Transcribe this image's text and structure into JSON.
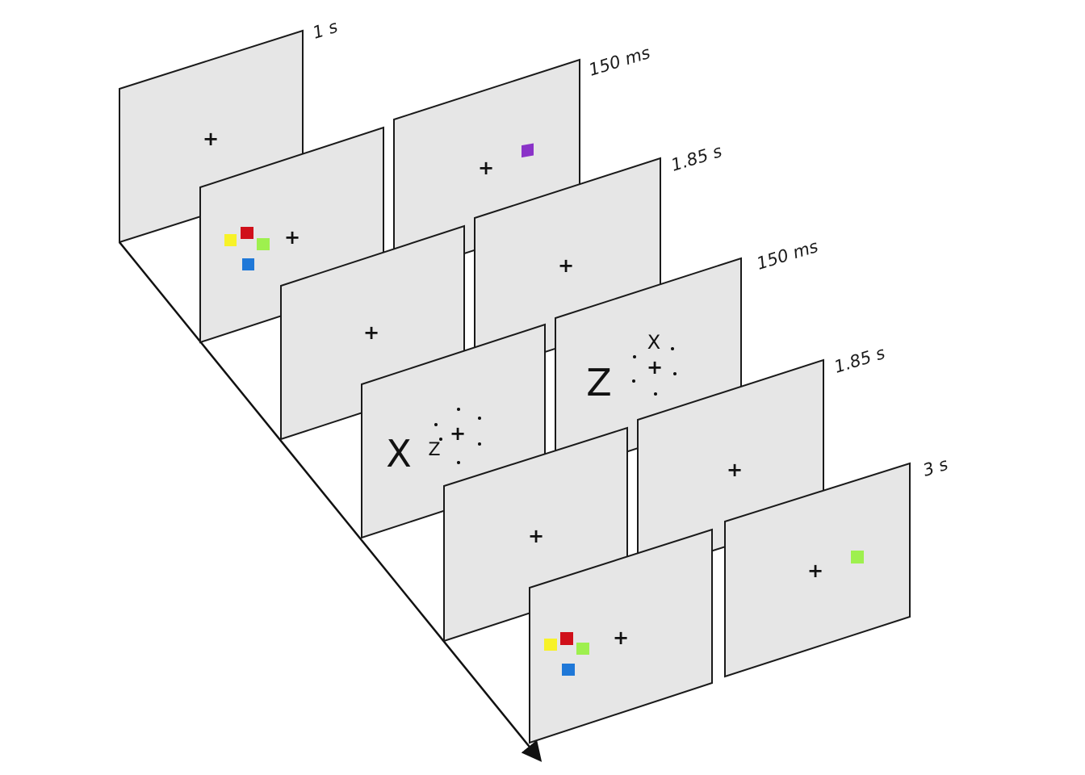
{
  "timeline_labels": {
    "fixation": "1 s",
    "cue": "150 ms",
    "delay_1": "1.85 s",
    "search": "150 ms",
    "delay_2": "1.85 s",
    "probe": "3 s"
  },
  "symbols": {
    "fixation_cross": "+",
    "placeholder_dot": "."
  },
  "search_letters": {
    "left_large": "X",
    "left_small": "Z",
    "right_large": "Z",
    "right_small": "X"
  },
  "colors": {
    "yellow": "#f7f228",
    "red": "#d0101a",
    "green": "#9ef04e",
    "blue": "#1f78d8",
    "purple": "#8a33c8",
    "panel_fill": "#e6e6e6"
  }
}
